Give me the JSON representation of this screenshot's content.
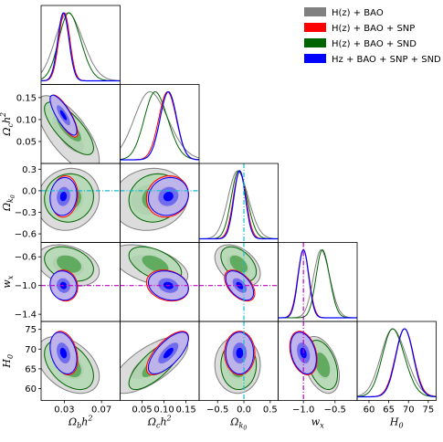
{
  "chart_data": {
    "type": "triangle-corner",
    "parameters": [
      {
        "key": "ob",
        "label_html": "Ω<sub>b</sub>h<sup>2</sup>",
        "label_main": "Ω",
        "label_sub": "b",
        "label_tail": "h",
        "label_sup": "2",
        "range": [
          0.005,
          0.09
        ],
        "ticks": [
          0.03,
          0.07
        ],
        "tick_labels": [
          "0.03",
          "0.07"
        ]
      },
      {
        "key": "oc",
        "label_main": "Ω",
        "label_sub": "c",
        "label_tail": "h",
        "label_sup": "2",
        "range": [
          0.0,
          0.18
        ],
        "ticks": [
          0.05,
          0.1,
          0.15
        ],
        "tick_labels": [
          "0.05",
          "0.10",
          "0.15"
        ]
      },
      {
        "key": "ok",
        "label_main": "Ω",
        "label_sub": "k",
        "label_sub2": "0",
        "range": [
          -0.72,
          0.38
        ],
        "ticks": [
          -0.6,
          -0.3,
          0.0,
          0.3
        ],
        "tick_labels": [
          "−0.6",
          "−0.3",
          "0.0",
          "0.3"
        ],
        "x_ticks": [
          -0.5,
          0.0,
          0.5
        ],
        "x_tick_labels": [
          "−0.5",
          "0.0",
          "0.5"
        ],
        "x_range": [
          -0.85,
          0.65
        ]
      },
      {
        "key": "wx",
        "label_main": "w",
        "label_sub": "x",
        "range": [
          -1.5,
          -0.4
        ],
        "ticks": [
          -1.4,
          -1.0,
          -0.6
        ],
        "tick_labels": [
          "−1.4",
          "−1.0",
          "−0.6"
        ],
        "x_ticks": [
          -1.0,
          -0.5
        ],
        "x_tick_labels": [
          "−1.0",
          "−0.5"
        ],
        "x_range": [
          -1.4,
          -0.15
        ]
      },
      {
        "key": "h0",
        "label_main": "H",
        "label_sub": "0",
        "range": [
          57,
          77
        ],
        "ticks": [
          60,
          65,
          70,
          75
        ],
        "tick_labels": [
          "60",
          "65",
          "70",
          "75"
        ]
      }
    ],
    "y_labels": {
      "oc": "Ω_c h^2",
      "ok": "Ω_k0",
      "wx": "w_x",
      "h0": "H_0"
    },
    "reference_lines": {
      "ok": 0.0,
      "wx": -1.0
    },
    "reference_colors": {
      "ok": "#17becf",
      "wx": "#c000c0"
    },
    "legend": [
      {
        "name": "H(z) + BAO",
        "color": "#808080"
      },
      {
        "name": "H(z) + BAO + SNP",
        "color": "#ff0000"
      },
      {
        "name": "H(z) + BAO + SND",
        "color": "#006400"
      },
      {
        "name": "Hz + BAO + SNP + SND",
        "color": "#0000ff"
      }
    ],
    "legend_placement": "top-right",
    "series": [
      {
        "name": "H(z) + BAO",
        "color": "#808080",
        "fill1": "#d8d8d8",
        "fill2": "#a0a0a0",
        "mean": {
          "ob": 0.034,
          "oc": 0.068,
          "ok": -0.12,
          "wx": -0.72,
          "h0": 66.0
        },
        "sd": {
          "ob": 0.014,
          "oc": 0.036,
          "ok": 0.18,
          "wx": 0.12,
          "h0": 3.0
        },
        "corr": {
          "ob_oc": -0.7,
          "ob_ok": 0.1,
          "ob_wx": -0.3,
          "ob_h0": -0.4,
          "oc_ok": 0.1,
          "oc_wx": -0.5,
          "oc_h0": 0.7,
          "ok_wx": -0.4,
          "ok_h0": 0.0,
          "wx_h0": -0.4
        }
      },
      {
        "name": "H(z) + BAO + SND",
        "color": "#006400",
        "fill1": "#b3d9b3",
        "fill2": "#59a659",
        "mean": {
          "ob": 0.035,
          "oc": 0.08,
          "ok": -0.1,
          "wx": -0.7,
          "h0": 66.0
        },
        "sd": {
          "ob": 0.011,
          "oc": 0.025,
          "ok": 0.14,
          "wx": 0.1,
          "h0": 2.6
        },
        "corr": {
          "ob_oc": -0.75,
          "ob_ok": 0.05,
          "ob_wx": -0.3,
          "ob_h0": -0.45,
          "oc_ok": 0.1,
          "oc_wx": -0.5,
          "oc_h0": 0.75,
          "ok_wx": -0.45,
          "ok_h0": 0.0,
          "wx_h0": -0.4
        }
      },
      {
        "name": "H(z) + BAO + SNP",
        "color": "#ff0000",
        "fill1": "#ffb3b3",
        "fill2": "#ff6666",
        "mean": {
          "ob": 0.03,
          "oc": 0.108,
          "ok": -0.08,
          "wx": -1.0,
          "h0": 69.0
        },
        "sd": {
          "ob": 0.006,
          "oc": 0.02,
          "ok": 0.12,
          "wx": 0.09,
          "h0": 2.3
        },
        "corr": {
          "ob_oc": -0.8,
          "ob_ok": 0.1,
          "ob_wx": -0.1,
          "ob_h0": -0.3,
          "oc_ok": 0.1,
          "oc_wx": -0.2,
          "oc_h0": 0.7,
          "ok_wx": -0.5,
          "ok_h0": 0.0,
          "wx_h0": -0.3
        }
      },
      {
        "name": "Hz + BAO + SNP + SND",
        "color": "#0000ff",
        "fill1": "#b4b4f5",
        "fill2": "#6666ee",
        "fill3": "#0000ff",
        "mean": {
          "ob": 0.029,
          "oc": 0.11,
          "ok": -0.08,
          "wx": -1.0,
          "h0": 69.0
        },
        "sd": {
          "ob": 0.006,
          "oc": 0.019,
          "ok": 0.11,
          "wx": 0.085,
          "h0": 2.2
        },
        "corr": {
          "ob_oc": -0.8,
          "ob_ok": 0.1,
          "ob_wx": -0.1,
          "ob_h0": -0.3,
          "oc_ok": 0.1,
          "oc_wx": -0.2,
          "oc_h0": 0.7,
          "ok_wx": -0.5,
          "ok_h0": 0.0,
          "wx_h0": -0.3
        }
      }
    ],
    "grid": false
  }
}
